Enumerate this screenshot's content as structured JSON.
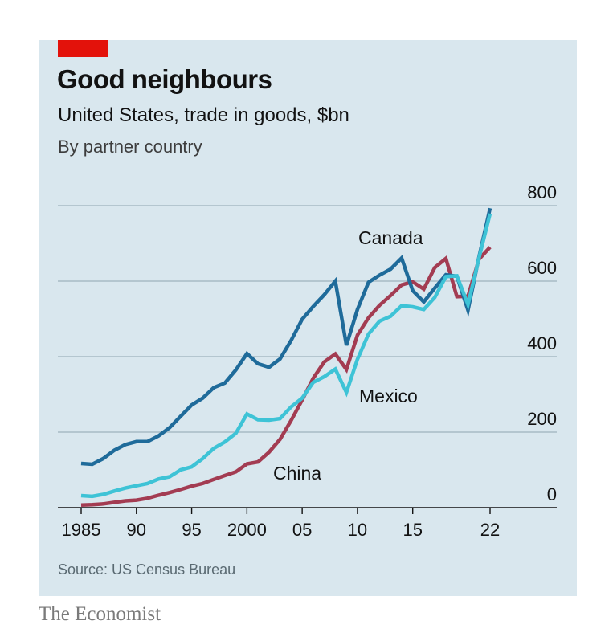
{
  "header": {
    "title": "Good neighbours",
    "subtitle": "United States, trade in goods, $bn",
    "subsubtitle": "By partner country"
  },
  "footer": {
    "source": "Source: US Census Bureau",
    "brand": "The Economist"
  },
  "colors": {
    "background": "#d9e7ee",
    "accent_red": "#e3120b",
    "canada": "#1f6b9a",
    "mexico": "#3ec3d6",
    "china": "#a33c52"
  },
  "chart_data": {
    "type": "line",
    "title": "Good neighbours",
    "subtitle": "United States, trade in goods, $bn",
    "xlabel": "",
    "ylabel": "",
    "xlim": [
      1985,
      2022
    ],
    "ylim": [
      0,
      800
    ],
    "y_axis_side": "right",
    "yticks": [
      0,
      200,
      400,
      600,
      800
    ],
    "ytick_labels": [
      "0",
      "200",
      "400",
      "600",
      "800"
    ],
    "xticks": [
      1985,
      1990,
      1995,
      2000,
      2005,
      2010,
      2015,
      2022
    ],
    "xtick_labels": [
      "1985",
      "90",
      "95",
      "2000",
      "05",
      "10",
      "15",
      "22"
    ],
    "grid": "horizontal",
    "x": [
      1985,
      1986,
      1987,
      1988,
      1989,
      1990,
      1991,
      1992,
      1993,
      1994,
      1995,
      1996,
      1997,
      1998,
      1999,
      2000,
      2001,
      2002,
      2003,
      2004,
      2005,
      2006,
      2007,
      2008,
      2009,
      2010,
      2011,
      2012,
      2013,
      2014,
      2015,
      2016,
      2017,
      2018,
      2019,
      2020,
      2021,
      2022
    ],
    "series": [
      {
        "name": "Canada",
        "color": "#1f6b9a",
        "values": [
          117,
          115,
          130,
          152,
          167,
          175,
          175,
          190,
          212,
          242,
          272,
          290,
          318,
          330,
          365,
          408,
          381,
          372,
          394,
          443,
          499,
          533,
          564,
          600,
          430,
          525,
          597,
          616,
          632,
          661,
          575,
          545,
          582,
          617,
          613,
          523,
          664,
          793
        ]
      },
      {
        "name": "Mexico",
        "color": "#3ec3d6",
        "values": [
          32,
          30,
          35,
          44,
          52,
          58,
          64,
          76,
          82,
          100,
          108,
          130,
          157,
          174,
          197,
          248,
          233,
          232,
          236,
          267,
          290,
          332,
          347,
          367,
          305,
          393,
          460,
          494,
          507,
          535,
          532,
          525,
          557,
          612,
          614,
          538,
          661,
          779
        ]
      },
      {
        "name": "China",
        "color": "#a33c52",
        "values": [
          7,
          8,
          10,
          14,
          18,
          20,
          25,
          33,
          40,
          48,
          57,
          64,
          75,
          85,
          95,
          116,
          121,
          147,
          181,
          231,
          285,
          343,
          386,
          407,
          366,
          457,
          503,
          536,
          562,
          590,
          598,
          579,
          636,
          660,
          559,
          560,
          658,
          690
        ]
      }
    ]
  }
}
